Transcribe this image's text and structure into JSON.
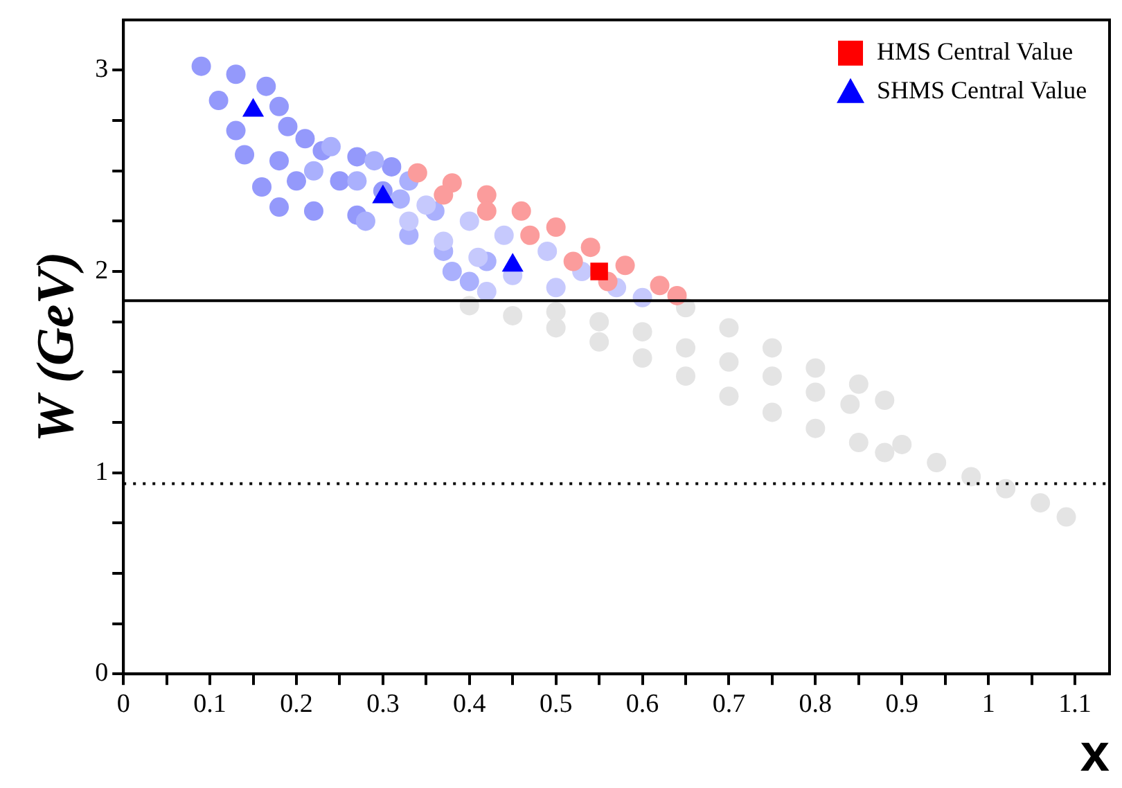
{
  "chart_data": {
    "type": "scatter",
    "xlabel": "x",
    "ylabel": "W (GeV)",
    "xlim": [
      0,
      1.14
    ],
    "ylim": [
      0,
      3.25
    ],
    "xticks": [
      0,
      {
        "value": 0.05,
        "label": null
      },
      0.1,
      {
        "value": 0.15,
        "label": null
      },
      0.2,
      {
        "value": 0.25,
        "label": null
      },
      0.3,
      {
        "value": 0.35,
        "label": null
      },
      0.4,
      {
        "value": 0.45,
        "label": null
      },
      0.5,
      {
        "value": 0.55,
        "label": null
      },
      0.6,
      {
        "value": 0.65,
        "label": null
      },
      0.7,
      {
        "value": 0.75,
        "label": null
      },
      0.8,
      {
        "value": 0.85,
        "label": null
      },
      0.9,
      {
        "value": 0.95,
        "label": null
      },
      1,
      {
        "value": 1.05,
        "label": null
      },
      1.1
    ],
    "yticks": [
      0,
      {
        "value": 0.25,
        "label": null
      },
      {
        "value": 0.5,
        "label": null
      },
      {
        "value": 0.75,
        "label": null
      },
      1,
      {
        "value": 1.25,
        "label": null
      },
      {
        "value": 1.5,
        "label": null
      },
      {
        "value": 1.75,
        "label": null
      },
      2,
      {
        "value": 2.25,
        "label": null
      },
      {
        "value": 2.5,
        "label": null
      },
      {
        "value": 2.75,
        "label": null
      },
      3
    ],
    "grid": false,
    "legend": "top right",
    "ref_lines": [
      {
        "axis": "y",
        "value": 1.855,
        "line_style": "solid",
        "color": "#000000"
      },
      {
        "axis": "y",
        "value": 0.945,
        "line_style": "dotted",
        "color": "#000000"
      }
    ],
    "series": [
      {
        "color": "#e4e4e4",
        "marker": "circle",
        "x": [
          0.4,
          0.45,
          0.5,
          0.55,
          0.6,
          0.65,
          0.7,
          0.75,
          0.8,
          0.85,
          0.88,
          0.5,
          0.55,
          0.6,
          0.65,
          0.7,
          0.75,
          0.8,
          0.84,
          0.65,
          0.7,
          0.75,
          0.8,
          0.85,
          0.88,
          0.9,
          0.94,
          0.98,
          1.02,
          1.06,
          1.09
        ],
        "values": [
          1.83,
          1.78,
          1.72,
          1.65,
          1.57,
          1.48,
          1.38,
          1.3,
          1.22,
          1.15,
          1.1,
          1.8,
          1.75,
          1.7,
          1.62,
          1.55,
          1.48,
          1.4,
          1.34,
          1.82,
          1.72,
          1.62,
          1.52,
          1.44,
          1.36,
          1.14,
          1.05,
          0.98,
          0.92,
          0.85,
          0.78
        ]
      },
      {
        "color": "#9499fb",
        "marker": "circle",
        "x": [
          0.09,
          0.13,
          0.165,
          0.11,
          0.18,
          0.13,
          0.19,
          0.21,
          0.14,
          0.18,
          0.23,
          0.27,
          0.31,
          0.16,
          0.2,
          0.25,
          0.3,
          0.18,
          0.22,
          0.27
        ],
        "values": [
          3.02,
          2.98,
          2.92,
          2.85,
          2.82,
          2.7,
          2.72,
          2.66,
          2.58,
          2.55,
          2.6,
          2.57,
          2.52,
          2.42,
          2.45,
          2.45,
          2.4,
          2.32,
          2.3,
          2.28
        ]
      },
      {
        "color": "#aab0fd",
        "marker": "circle",
        "x": [
          0.24,
          0.29,
          0.33,
          0.22,
          0.27,
          0.32,
          0.28,
          0.33,
          0.37,
          0.4,
          0.38,
          0.36,
          0.42
        ],
        "values": [
          2.62,
          2.55,
          2.45,
          2.5,
          2.45,
          2.36,
          2.25,
          2.18,
          2.1,
          1.95,
          2.0,
          2.3,
          2.05
        ]
      },
      {
        "color": "#c6c9fd",
        "marker": "circle",
        "x": [
          0.35,
          0.4,
          0.44,
          0.49,
          0.53,
          0.57,
          0.33,
          0.37,
          0.41,
          0.45,
          0.5,
          0.42,
          0.6
        ],
        "values": [
          2.33,
          2.25,
          2.18,
          2.1,
          2.0,
          1.92,
          2.25,
          2.15,
          2.07,
          1.98,
          1.92,
          1.9,
          1.87
        ]
      },
      {
        "color": "#fb9c9c",
        "marker": "circle",
        "x": [
          0.34,
          0.38,
          0.42,
          0.46,
          0.5,
          0.54,
          0.58,
          0.62,
          0.64,
          0.37,
          0.42,
          0.47,
          0.52,
          0.56
        ],
        "values": [
          2.49,
          2.44,
          2.38,
          2.3,
          2.22,
          2.12,
          2.03,
          1.93,
          1.88,
          2.38,
          2.3,
          2.18,
          2.05,
          1.95
        ]
      },
      {
        "name": "HMS Central Value",
        "color": "#ff0000",
        "marker": "square",
        "x": [
          0.55
        ],
        "values": [
          2.0
        ]
      },
      {
        "name": "SHMS Central Value",
        "color": "#0000ff",
        "marker": "triangle",
        "x": [
          0.15,
          0.3,
          0.45
        ],
        "values": [
          2.8,
          2.37,
          2.03
        ]
      }
    ]
  }
}
